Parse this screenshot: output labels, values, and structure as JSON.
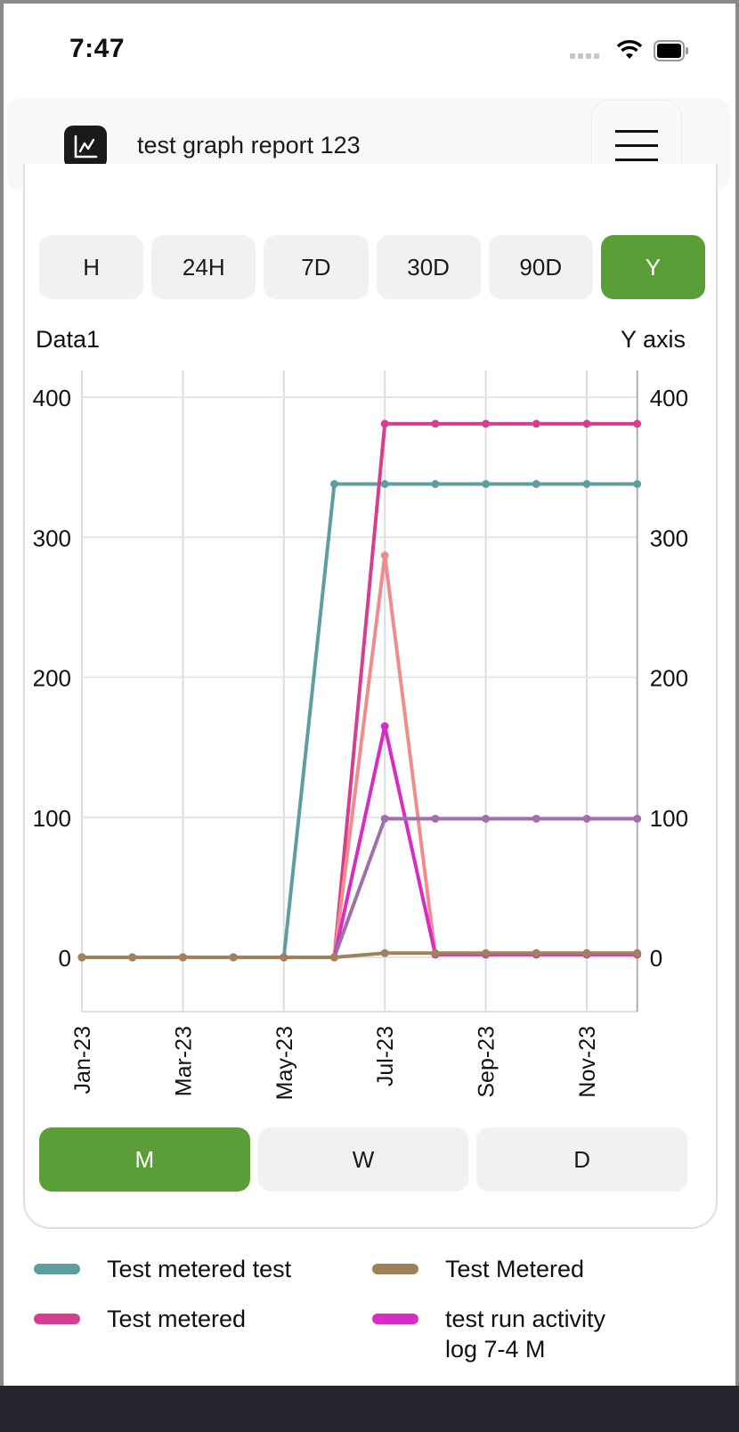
{
  "status_bar": {
    "time": "7:47",
    "icons": [
      "signal-dots-icon",
      "wifi-icon",
      "battery-icon"
    ]
  },
  "header": {
    "title": "test graph report 123",
    "logo_icon": "line-chart-icon",
    "menu_icon": "hamburger-menu-icon"
  },
  "range_buttons": [
    {
      "label": "H",
      "active": false
    },
    {
      "label": "24H",
      "active": false
    },
    {
      "label": "7D",
      "active": false
    },
    {
      "label": "30D",
      "active": false
    },
    {
      "label": "90D",
      "active": false
    },
    {
      "label": "Y",
      "active": true
    }
  ],
  "granularity_buttons": [
    {
      "label": "M",
      "active": true
    },
    {
      "label": "W",
      "active": false
    },
    {
      "label": "D",
      "active": false
    }
  ],
  "colors": {
    "accent": "#5a9e3a",
    "inactive_button": "#f1f1f4",
    "grid": "#dcdce4"
  },
  "chart_data": {
    "type": "line",
    "title": "",
    "left_axis_label": "Data1",
    "right_axis_label": "Y axis",
    "xlabel": "",
    "ylabel": "Data1",
    "ylim": [
      -40,
      420
    ],
    "y_ticks": [
      0,
      100,
      200,
      300,
      400
    ],
    "x": [
      "Jan-23",
      "Feb-23",
      "Mar-23",
      "Apr-23",
      "May-23",
      "Jun-23",
      "Jul-23",
      "Aug-23",
      "Sep-23",
      "Oct-23",
      "Nov-23",
      "Dec-23"
    ],
    "x_tick_labels": [
      "Jan-23",
      "Mar-23",
      "May-23",
      "Jul-23",
      "Sep-23",
      "Nov-23"
    ],
    "grid": true,
    "legend_position": "bottom",
    "series": [
      {
        "name": "Test metered test",
        "color": "#5f9ea0",
        "values": [
          0,
          0,
          0,
          0,
          0,
          338,
          338,
          338,
          338,
          338,
          338,
          338
        ]
      },
      {
        "name": "Test Metered",
        "color": "#a0825a",
        "values": [
          0,
          0,
          0,
          0,
          0,
          0,
          3,
          3,
          3,
          3,
          3,
          3
        ]
      },
      {
        "name": "Test metered",
        "color": "#d63e8f",
        "values": [
          0,
          0,
          0,
          0,
          0,
          0,
          381,
          381,
          381,
          381,
          381,
          381
        ]
      },
      {
        "name": "test run activity log 7-4 M",
        "color": "#d62ec2",
        "values": [
          0,
          0,
          0,
          0,
          0,
          0,
          165,
          2,
          2,
          2,
          2,
          2
        ]
      },
      {
        "name": "(unlabeled salmon series)",
        "color": "#f08c8c",
        "values": [
          0,
          0,
          0,
          0,
          0,
          0,
          287,
          2,
          2,
          2,
          2,
          2
        ],
        "legend_visible": false
      },
      {
        "name": "(unlabeled lavender series)",
        "color": "#a070a8",
        "values": [
          0,
          0,
          0,
          0,
          0,
          0,
          99,
          99,
          99,
          99,
          99,
          99
        ],
        "legend_visible": false
      }
    ]
  },
  "legend": [
    {
      "label": "Test metered test",
      "color": "#5f9ea0"
    },
    {
      "label": "Test Metered",
      "color": "#a0825a"
    },
    {
      "label": "Test metered",
      "color": "#d63e8f"
    },
    {
      "label": "test run activity log 7-4 M",
      "color": "#d62ec2"
    }
  ]
}
